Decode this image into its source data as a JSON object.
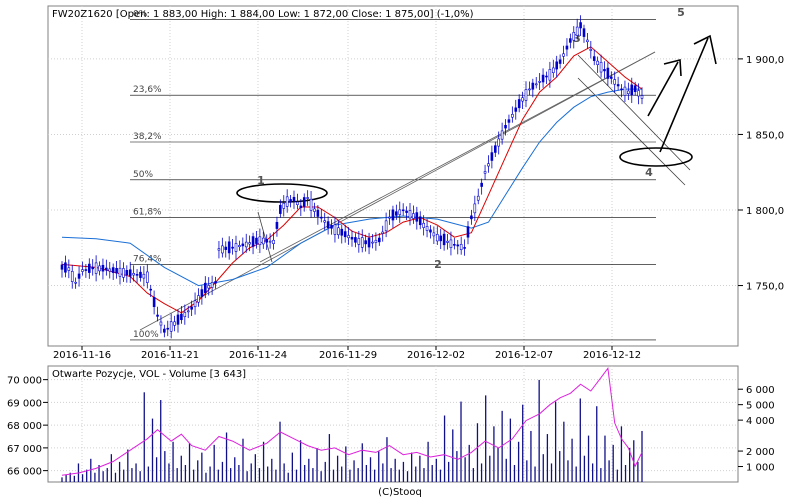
{
  "header": {
    "ohlc_label": "FW20Z1620 [Open: 1 883,00  High: 1 884,00  Low: 1 872,00  Close: 1 875,00] (-1,0%)"
  },
  "volume_panel": {
    "label": "Otwarte Pozycje, VOL - Volume [3 643]"
  },
  "footer": {
    "copyright": "(C)Stooq"
  },
  "colors": {
    "candles": "#0000cc",
    "ma_short": "#dd0000",
    "ma_long": "#1a6fd6",
    "open_interest": "#dd22dd",
    "volume": "#101088",
    "grid": "#d0d0d0",
    "fib": "#000000"
  },
  "chart_data": [
    {
      "type": "candlestick",
      "title": "",
      "x_ticks": [
        "2016-11-16",
        "2016-11-21",
        "2016-11-24",
        "2016-11-29",
        "2016-12-02",
        "2016-12-07",
        "2016-12-12"
      ],
      "y_ticks": [
        "1 750,0",
        "1 800,0",
        "1 850,0",
        "1 900,0"
      ],
      "ylim": [
        1710,
        1935
      ],
      "grid": true,
      "fibonacci": [
        {
          "label": "0%",
          "value": 1926
        },
        {
          "label": "23,6%",
          "value": 1876
        },
        {
          "label": "38,2%",
          "value": 1845
        },
        {
          "label": "50%",
          "value": 1820
        },
        {
          "label": "61,8%",
          "value": 1795
        },
        {
          "label": "76,4%",
          "value": 1764
        },
        {
          "label": "100%",
          "value": 1714
        }
      ],
      "wave_labels": [
        "1",
        "2",
        "3",
        "4",
        "5"
      ],
      "price_path": [
        [
          0,
          1762
        ],
        [
          2,
          1761
        ],
        [
          4,
          1752
        ],
        [
          6,
          1760
        ],
        [
          10,
          1762
        ],
        [
          15,
          1760
        ],
        [
          20,
          1758
        ],
        [
          25,
          1756
        ],
        [
          28,
          1730
        ],
        [
          30,
          1720
        ],
        [
          33,
          1725
        ],
        [
          38,
          1735
        ],
        [
          42,
          1748
        ],
        [
          45,
          1752
        ],
        [
          46,
          1774
        ],
        [
          50,
          1775
        ],
        [
          55,
          1778
        ],
        [
          58,
          1780
        ],
        [
          62,
          1779
        ],
        [
          64,
          1800
        ],
        [
          66,
          1806
        ],
        [
          68,
          1807
        ],
        [
          70,
          1802
        ],
        [
          72,
          1808
        ],
        [
          74,
          1800
        ],
        [
          76,
          1795
        ],
        [
          78,
          1790
        ],
        [
          82,
          1785
        ],
        [
          86,
          1780
        ],
        [
          90,
          1778
        ],
        [
          93,
          1780
        ],
        [
          96,
          1795
        ],
        [
          100,
          1800
        ],
        [
          104,
          1795
        ],
        [
          106,
          1790
        ],
        [
          110,
          1782
        ],
        [
          114,
          1778
        ],
        [
          118,
          1775
        ],
        [
          120,
          1795
        ],
        [
          122,
          1808
        ],
        [
          124,
          1825
        ],
        [
          127,
          1840
        ],
        [
          130,
          1855
        ],
        [
          134,
          1870
        ],
        [
          137,
          1880
        ],
        [
          140,
          1885
        ],
        [
          143,
          1890
        ],
        [
          146,
          1898
        ],
        [
          149,
          1912
        ],
        [
          152,
          1922
        ],
        [
          154,
          1912
        ],
        [
          156,
          1900
        ],
        [
          158,
          1895
        ],
        [
          160,
          1890
        ],
        [
          162,
          1885
        ],
        [
          164,
          1880
        ],
        [
          166,
          1878
        ],
        [
          168,
          1880
        ],
        [
          170,
          1875
        ]
      ],
      "ma_short": [
        [
          0,
          1764
        ],
        [
          10,
          1762
        ],
        [
          20,
          1756
        ],
        [
          25,
          1745
        ],
        [
          30,
          1738
        ],
        [
          35,
          1732
        ],
        [
          40,
          1740
        ],
        [
          45,
          1752
        ],
        [
          50,
          1765
        ],
        [
          55,
          1775
        ],
        [
          60,
          1780
        ],
        [
          65,
          1790
        ],
        [
          70,
          1802
        ],
        [
          75,
          1802
        ],
        [
          80,
          1795
        ],
        [
          85,
          1786
        ],
        [
          90,
          1782
        ],
        [
          95,
          1785
        ],
        [
          100,
          1792
        ],
        [
          105,
          1795
        ],
        [
          110,
          1790
        ],
        [
          115,
          1782
        ],
        [
          120,
          1785
        ],
        [
          125,
          1810
        ],
        [
          130,
          1835
        ],
        [
          135,
          1860
        ],
        [
          140,
          1878
        ],
        [
          145,
          1888
        ],
        [
          150,
          1902
        ],
        [
          155,
          1908
        ],
        [
          160,
          1898
        ],
        [
          165,
          1888
        ],
        [
          170,
          1880
        ]
      ],
      "ma_long": [
        [
          0,
          1782
        ],
        [
          10,
          1781
        ],
        [
          20,
          1778
        ],
        [
          30,
          1762
        ],
        [
          40,
          1750
        ],
        [
          50,
          1754
        ],
        [
          60,
          1762
        ],
        [
          70,
          1778
        ],
        [
          80,
          1790
        ],
        [
          90,
          1794
        ],
        [
          100,
          1796
        ],
        [
          110,
          1794
        ],
        [
          120,
          1788
        ],
        [
          125,
          1792
        ],
        [
          130,
          1810
        ],
        [
          135,
          1828
        ],
        [
          140,
          1845
        ],
        [
          145,
          1858
        ],
        [
          150,
          1868
        ],
        [
          155,
          1875
        ],
        [
          160,
          1878
        ],
        [
          165,
          1880
        ],
        [
          170,
          1880
        ]
      ]
    },
    {
      "type": "bar",
      "title": "Otwarte Pozycje, VOL - Volume [3 643]",
      "y_ticks_left": [
        "66 000",
        "67 000",
        "68 000",
        "69 000",
        "70 000"
      ],
      "y_ticks_right": [
        "1 000",
        "2 000",
        "4 000",
        "5 000",
        "6 000"
      ],
      "volume_ylim": [
        0,
        7500
      ],
      "open_interest_ylim": [
        65500,
        70600
      ],
      "volume": [
        300,
        450,
        600,
        400,
        1200,
        500,
        800,
        1500,
        600,
        1100,
        700,
        900,
        1800,
        600,
        1300,
        800,
        2100,
        900,
        1200,
        700,
        5800,
        1000,
        4100,
        1600,
        5300,
        2000,
        1200,
        2600,
        900,
        1700,
        1100,
        2500,
        800,
        1400,
        1900,
        600,
        1000,
        2400,
        800,
        1300,
        3200,
        900,
        1600,
        1100,
        2800,
        700,
        1200,
        1800,
        900,
        2600,
        1000,
        1500,
        800,
        3900,
        1200,
        600,
        1900,
        800,
        2700,
        1100,
        1500,
        900,
        2200,
        700,
        1300,
        3100,
        800,
        1700,
        1000,
        2300,
        800,
        1400,
        900,
        2500,
        1100,
        1600,
        800,
        2000,
        1200,
        2900,
        900,
        1500,
        800,
        1300,
        700,
        1900,
        1000,
        1700,
        900,
        2600,
        1100,
        1500,
        800,
        4300,
        1300,
        3400,
        2000,
        5200,
        1600,
        2400,
        900,
        3800,
        1200,
        5600,
        1700,
        3600,
        2200,
        4600,
        1500,
        4100,
        1100,
        2600,
        5000,
        1400,
        3300,
        1000,
        6600,
        1800,
        3100,
        1200,
        5200,
        2000,
        3900,
        1400,
        2800,
        1000,
        5400,
        1700,
        3000,
        1200,
        4900,
        900,
        3000,
        1400,
        2400,
        800,
        3600,
        1100,
        2200,
        2700,
        1300,
        3300
      ],
      "open_interest": [
        [
          0,
          65800
        ],
        [
          5,
          65900
        ],
        [
          10,
          66100
        ],
        [
          15,
          66400
        ],
        [
          20,
          66900
        ],
        [
          25,
          67400
        ],
        [
          28,
          67800
        ],
        [
          32,
          67300
        ],
        [
          35,
          67600
        ],
        [
          38,
          67100
        ],
        [
          42,
          66900
        ],
        [
          46,
          67500
        ],
        [
          50,
          67300
        ],
        [
          55,
          66900
        ],
        [
          60,
          67200
        ],
        [
          64,
          67700
        ],
        [
          68,
          67400
        ],
        [
          72,
          67100
        ],
        [
          76,
          66900
        ],
        [
          80,
          67000
        ],
        [
          84,
          66700
        ],
        [
          88,
          66900
        ],
        [
          92,
          66800
        ],
        [
          96,
          67100
        ],
        [
          100,
          66700
        ],
        [
          104,
          66800
        ],
        [
          108,
          66600
        ],
        [
          112,
          66700
        ],
        [
          116,
          66500
        ],
        [
          120,
          66800
        ],
        [
          124,
          67300
        ],
        [
          128,
          67000
        ],
        [
          132,
          67400
        ],
        [
          136,
          68200
        ],
        [
          140,
          68500
        ],
        [
          143,
          68900
        ],
        [
          146,
          69200
        ],
        [
          149,
          69400
        ],
        [
          152,
          69800
        ],
        [
          155,
          69500
        ],
        [
          158,
          70100
        ],
        [
          160,
          70500
        ],
        [
          162,
          68100
        ],
        [
          164,
          67400
        ],
        [
          166,
          67000
        ],
        [
          168,
          66200
        ],
        [
          170,
          66800
        ]
      ]
    }
  ]
}
